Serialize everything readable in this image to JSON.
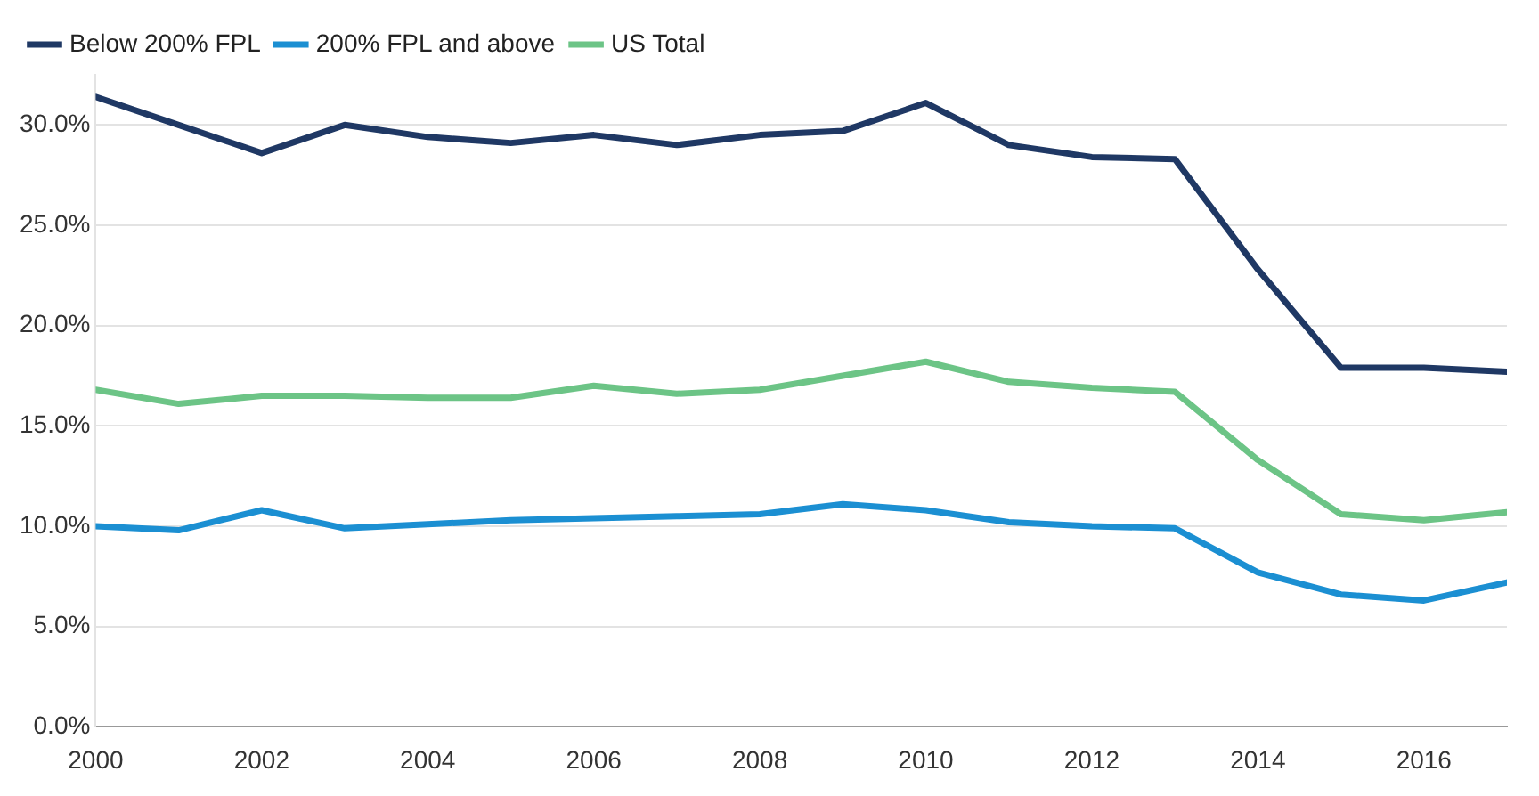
{
  "chart_data": {
    "type": "line",
    "x": [
      2000,
      2001,
      2002,
      2003,
      2004,
      2005,
      2006,
      2007,
      2008,
      2009,
      2010,
      2011,
      2012,
      2013,
      2014,
      2015,
      2016,
      2017
    ],
    "series": [
      {
        "name": "Below 200% FPL",
        "color": "#1f3864",
        "values": [
          31.4,
          30.0,
          28.6,
          30.0,
          29.4,
          29.1,
          29.5,
          29.0,
          29.5,
          29.7,
          31.1,
          29.0,
          28.4,
          28.3,
          22.8,
          17.9,
          17.9,
          17.7
        ]
      },
      {
        "name": "200% FPL and above",
        "color": "#1b8fd2",
        "values": [
          10.0,
          9.8,
          10.8,
          9.9,
          10.1,
          10.3,
          10.4,
          10.5,
          10.6,
          11.1,
          10.8,
          10.2,
          10.0,
          9.9,
          7.7,
          6.6,
          6.3,
          7.2
        ]
      },
      {
        "name": "US Total",
        "color": "#6cc486",
        "values": [
          16.8,
          16.1,
          16.5,
          16.5,
          16.4,
          16.4,
          17.0,
          16.6,
          16.8,
          17.5,
          18.2,
          17.2,
          16.9,
          16.7,
          13.3,
          10.6,
          10.3,
          10.7
        ]
      }
    ],
    "xlim": [
      2000,
      2017
    ],
    "xticks": [
      2000,
      2002,
      2004,
      2006,
      2008,
      2010,
      2012,
      2014,
      2016
    ],
    "ylim": [
      0,
      32.5
    ],
    "yticks": [
      {
        "value": 0,
        "label": "0.0%"
      },
      {
        "value": 5,
        "label": "5.0%"
      },
      {
        "value": 10,
        "label": "10.0%"
      },
      {
        "value": 15,
        "label": "15.0%"
      },
      {
        "value": 20,
        "label": "20.0%"
      },
      {
        "value": 25,
        "label": "25.0%"
      },
      {
        "value": 30,
        "label": "30.0%"
      }
    ],
    "grid": "y",
    "legend": "top left",
    "marker": "none",
    "line_style": "solid"
  }
}
